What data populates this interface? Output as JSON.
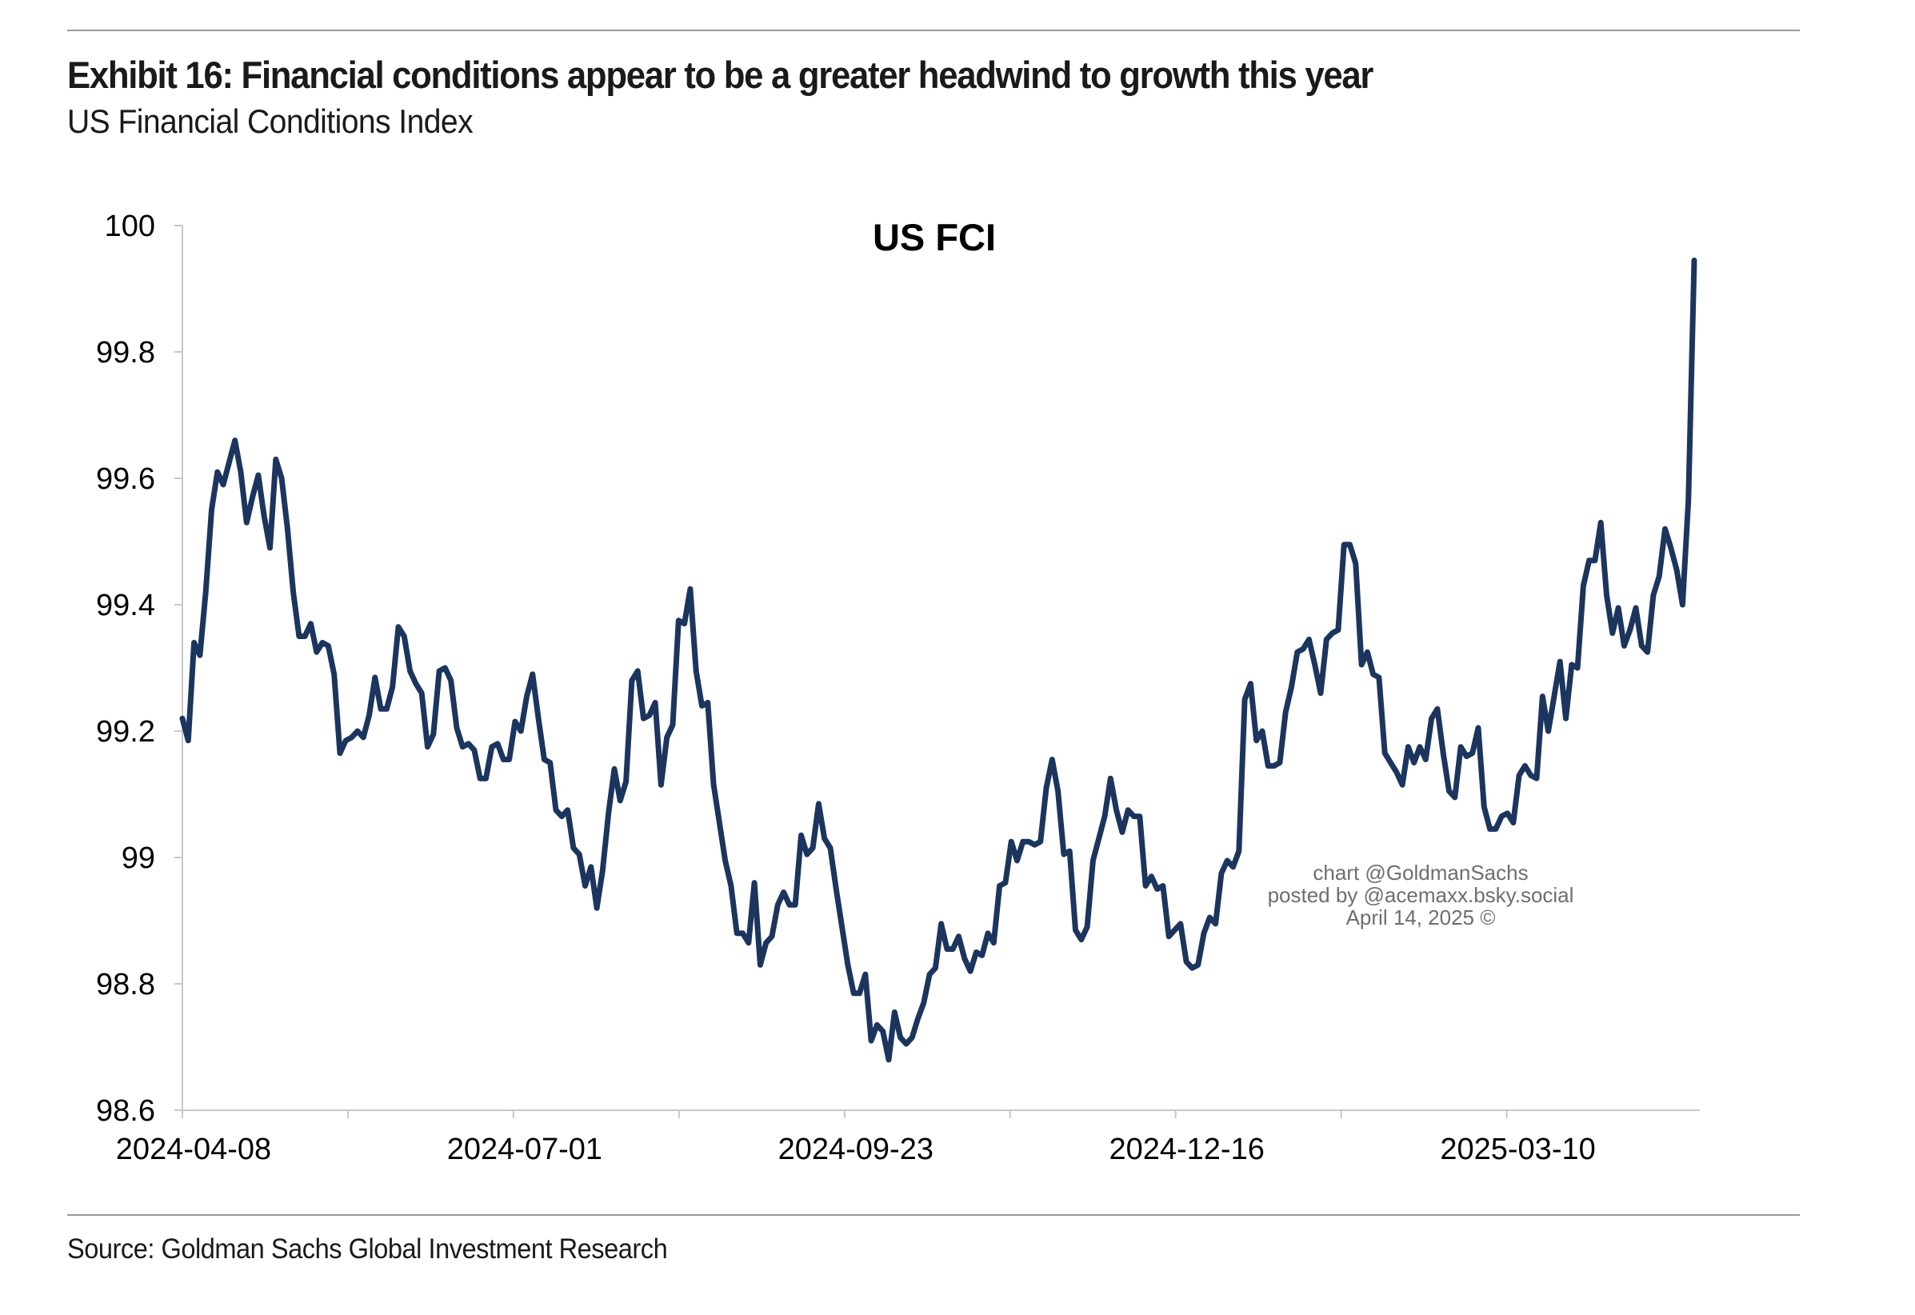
{
  "header": {
    "title": "Exhibit 16: Financial conditions appear to be a greater headwind to growth this year",
    "subtitle": "US Financial Conditions Index"
  },
  "footer": {
    "source": "Source: Goldman Sachs Global Investment Research"
  },
  "watermark": {
    "line1": "chart @GoldmanSachs",
    "line2": "posted by @acemaxx.bsky.social",
    "line3": "April 14, 2025 ©"
  },
  "colors": {
    "line": "#1c355e",
    "axis": "#c8c8c8",
    "text": "#000000"
  },
  "chart_data": {
    "type": "line",
    "title": "US FCI",
    "xlabel": "",
    "ylabel": "",
    "ylim": [
      98.6,
      100
    ],
    "yticks": [
      100,
      99.8,
      99.6,
      99.4,
      99.2,
      99,
      98.8,
      98.6
    ],
    "ytick_labels": [
      "100",
      "99.8",
      "99.6",
      "99.4",
      "99.2",
      "99",
      "98.8",
      "98.6"
    ],
    "xlim": [
      "2024-04-08",
      "2025-04-28"
    ],
    "xtick_labels": [
      "2024-04-08",
      "2024-07-01",
      "2024-09-23",
      "2024-12-16",
      "2025-03-10"
    ],
    "xtick_minor": [
      "2024-05-20",
      "2024-08-12",
      "2024-11-04",
      "2025-01-27"
    ],
    "grid": false,
    "legend": "none",
    "series": [
      {
        "values": [
          99.22,
          99.185,
          99.34,
          99.32,
          99.42,
          99.55,
          99.61,
          99.59,
          99.625,
          99.66,
          99.61,
          99.53,
          99.57,
          99.605,
          99.54,
          99.49,
          99.63,
          99.6,
          99.52,
          99.42,
          99.35,
          99.35,
          99.37,
          99.325,
          99.34,
          99.335,
          99.29,
          99.165,
          99.185,
          99.19,
          99.2,
          99.19,
          99.225,
          99.285,
          99.235,
          99.235,
          99.27,
          99.365,
          99.35,
          99.295,
          99.275,
          99.26,
          99.175,
          99.195,
          99.295,
          99.3,
          99.28,
          99.205,
          99.175,
          99.18,
          99.17,
          99.125,
          99.125,
          99.175,
          99.18,
          99.155,
          99.155,
          99.215,
          99.2,
          99.255,
          99.29,
          99.22,
          99.155,
          99.15,
          99.075,
          99.065,
          99.075,
          99.015,
          99.005,
          98.955,
          98.985,
          98.92,
          98.98,
          99.07,
          99.14,
          99.09,
          99.12,
          99.28,
          99.295,
          99.22,
          99.225,
          99.245,
          99.115,
          99.19,
          99.21,
          99.375,
          99.37,
          99.425,
          99.295,
          99.24,
          99.245,
          99.115,
          99.055,
          98.995,
          98.955,
          98.88,
          98.88,
          98.865,
          98.96,
          98.83,
          98.865,
          98.875,
          98.925,
          98.945,
          98.925,
          98.925,
          99.035,
          99.005,
          99.015,
          99.085,
          99.03,
          99.015,
          98.95,
          98.89,
          98.83,
          98.785,
          98.785,
          98.815,
          98.71,
          98.735,
          98.725,
          98.68,
          98.755,
          98.715,
          98.705,
          98.715,
          98.745,
          98.77,
          98.815,
          98.825,
          98.895,
          98.855,
          98.855,
          98.875,
          98.84,
          98.82,
          98.85,
          98.845,
          98.88,
          98.865,
          98.955,
          98.96,
          99.025,
          98.995,
          99.025,
          99.025,
          99.02,
          99.025,
          99.11,
          99.155,
          99.105,
          99.005,
          99.01,
          98.885,
          98.87,
          98.89,
          98.995,
          99.03,
          99.065,
          99.125,
          99.075,
          99.04,
          99.075,
          99.065,
          99.065,
          98.955,
          98.97,
          98.95,
          98.955,
          98.875,
          98.885,
          98.895,
          98.835,
          98.825,
          98.83,
          98.88,
          98.905,
          98.895,
          98.975,
          98.995,
          98.985,
          99.01,
          99.25,
          99.275,
          99.185,
          99.2,
          99.145,
          99.145,
          99.15,
          99.23,
          99.27,
          99.325,
          99.33,
          99.345,
          99.305,
          99.26,
          99.345,
          99.355,
          99.36,
          99.495,
          99.495,
          99.465,
          99.305,
          99.325,
          99.29,
          99.285,
          99.165,
          99.15,
          99.135,
          99.115,
          99.175,
          99.15,
          99.175,
          99.155,
          99.22,
          99.235,
          99.165,
          99.105,
          99.095,
          99.175,
          99.16,
          99.165,
          99.205,
          99.08,
          99.045,
          99.045,
          99.065,
          99.07,
          99.055,
          99.13,
          99.145,
          99.13,
          99.125,
          99.255,
          99.2,
          99.255,
          99.31,
          99.22,
          99.305,
          99.3,
          99.43,
          99.47,
          99.47,
          99.53,
          99.415,
          99.355,
          99.395,
          99.335,
          99.36,
          99.395,
          99.335,
          99.325,
          99.415,
          99.445,
          99.52,
          99.49,
          99.455,
          99.4,
          99.565,
          99.945
        ]
      }
    ]
  }
}
